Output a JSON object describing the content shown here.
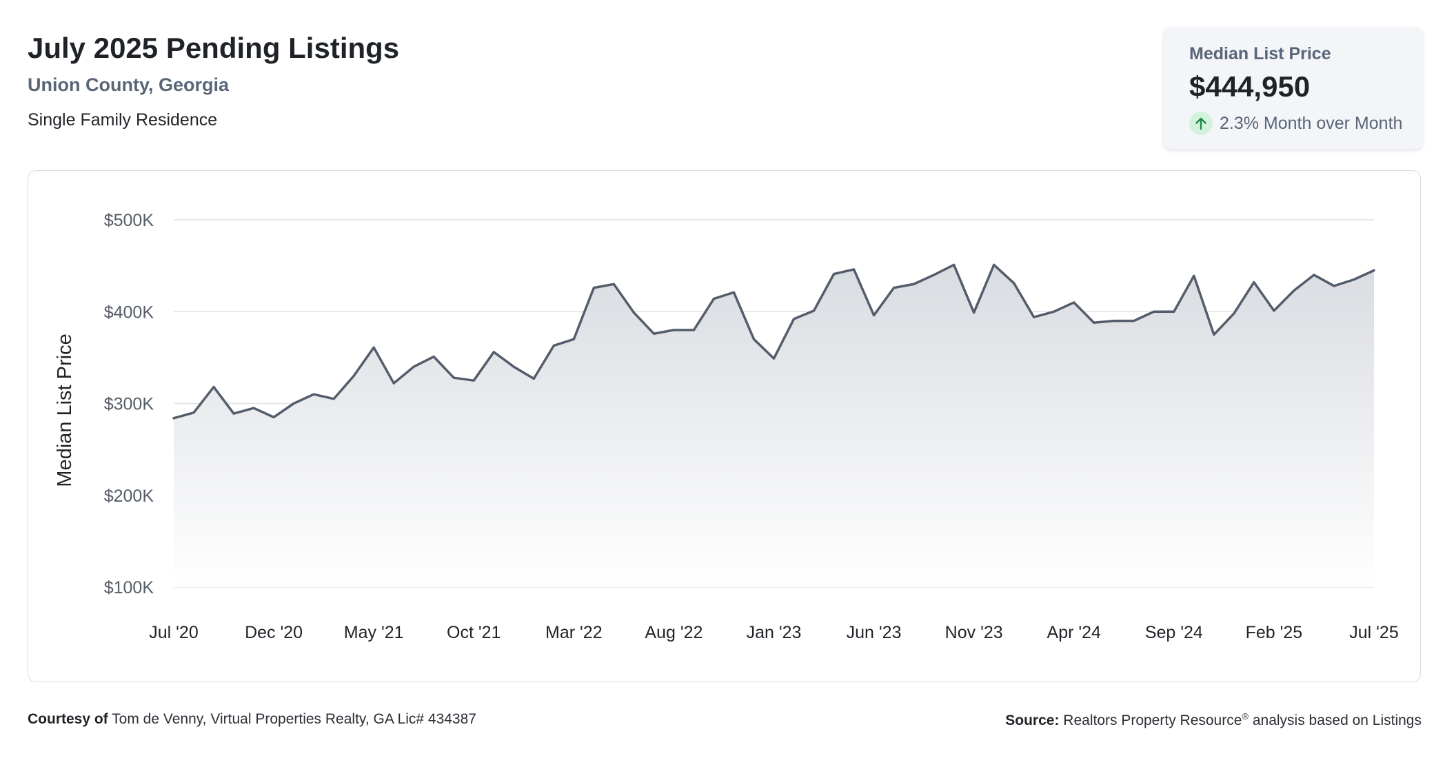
{
  "header": {
    "title": "July 2025 Pending Listings",
    "location": "Union County, Georgia",
    "property_type": "Single Family Residence"
  },
  "stat_card": {
    "label": "Median List Price",
    "value": "$444,950",
    "change": "2.3% Month over Month",
    "direction_icon": "arrow-up-icon",
    "icon_color": "#1e8a43",
    "icon_bg": "#d3f2dd"
  },
  "footer": {
    "courtesy_label": "Courtesy of",
    "courtesy_text": "Tom de Venny, Virtual Properties Realty, GA Lic# 434387",
    "source_label": "Source:",
    "source_text_a": "Realtors Property Resource",
    "source_sup": "®",
    "source_text_b": " analysis based on Listings"
  },
  "colors": {
    "line": "#545d6b",
    "grid": "#dfe2e6",
    "area_top": "#d9dce1",
    "area_bottom": "#ffffff"
  },
  "chart_data": {
    "type": "area",
    "title": "",
    "ylabel": "Median List Price",
    "xlabel": "",
    "ylim": [
      100000,
      500000
    ],
    "yticks": [
      100000,
      200000,
      300000,
      400000,
      500000
    ],
    "ytick_labels": [
      "$100K",
      "$200K",
      "$300K",
      "$400K",
      "$500K"
    ],
    "xtick_labels": [
      "Jul '20",
      "Dec '20",
      "May '21",
      "Oct '21",
      "Mar '22",
      "Aug '22",
      "Jan '23",
      "Jun '23",
      "Nov '23",
      "Apr '24",
      "Sep '24",
      "Feb '25",
      "Jul '25"
    ],
    "xtick_every": 5,
    "grid": true,
    "legend": "none",
    "x": [
      "Jul '20",
      "Aug '20",
      "Sep '20",
      "Oct '20",
      "Nov '20",
      "Dec '20",
      "Jan '21",
      "Feb '21",
      "Mar '21",
      "Apr '21",
      "May '21",
      "Jun '21",
      "Jul '21",
      "Aug '21",
      "Sep '21",
      "Oct '21",
      "Nov '21",
      "Dec '21",
      "Jan '22",
      "Feb '22",
      "Mar '22",
      "Apr '22",
      "May '22",
      "Jun '22",
      "Jul '22",
      "Aug '22",
      "Sep '22",
      "Oct '22",
      "Nov '22",
      "Dec '22",
      "Jan '23",
      "Feb '23",
      "Mar '23",
      "Apr '23",
      "May '23",
      "Jun '23",
      "Jul '23",
      "Aug '23",
      "Sep '23",
      "Oct '23",
      "Nov '23",
      "Dec '23",
      "Jan '24",
      "Feb '24",
      "Mar '24",
      "Apr '24",
      "May '24",
      "Jun '24",
      "Jul '24",
      "Aug '24",
      "Sep '24",
      "Oct '24",
      "Nov '24",
      "Dec '24",
      "Jan '25",
      "Feb '25",
      "Mar '25",
      "Apr '25",
      "May '25",
      "Jun '25",
      "Jul '25"
    ],
    "series": [
      {
        "values": [
          284000,
          290000,
          318000,
          289000,
          295000,
          285000,
          300000,
          310000,
          305000,
          330000,
          361000,
          322000,
          340000,
          351000,
          328000,
          325000,
          356000,
          340000,
          327000,
          363000,
          370000,
          426000,
          430000,
          399000,
          376000,
          380000,
          380000,
          414000,
          421000,
          370000,
          349000,
          392000,
          401000,
          441000,
          446000,
          396000,
          426000,
          430000,
          440000,
          451000,
          399000,
          451000,
          431000,
          394000,
          400000,
          410000,
          388000,
          390000,
          390000,
          400000,
          400000,
          439000,
          375000,
          398000,
          432000,
          401000,
          423000,
          440000,
          428000,
          435000,
          444950
        ]
      }
    ]
  }
}
